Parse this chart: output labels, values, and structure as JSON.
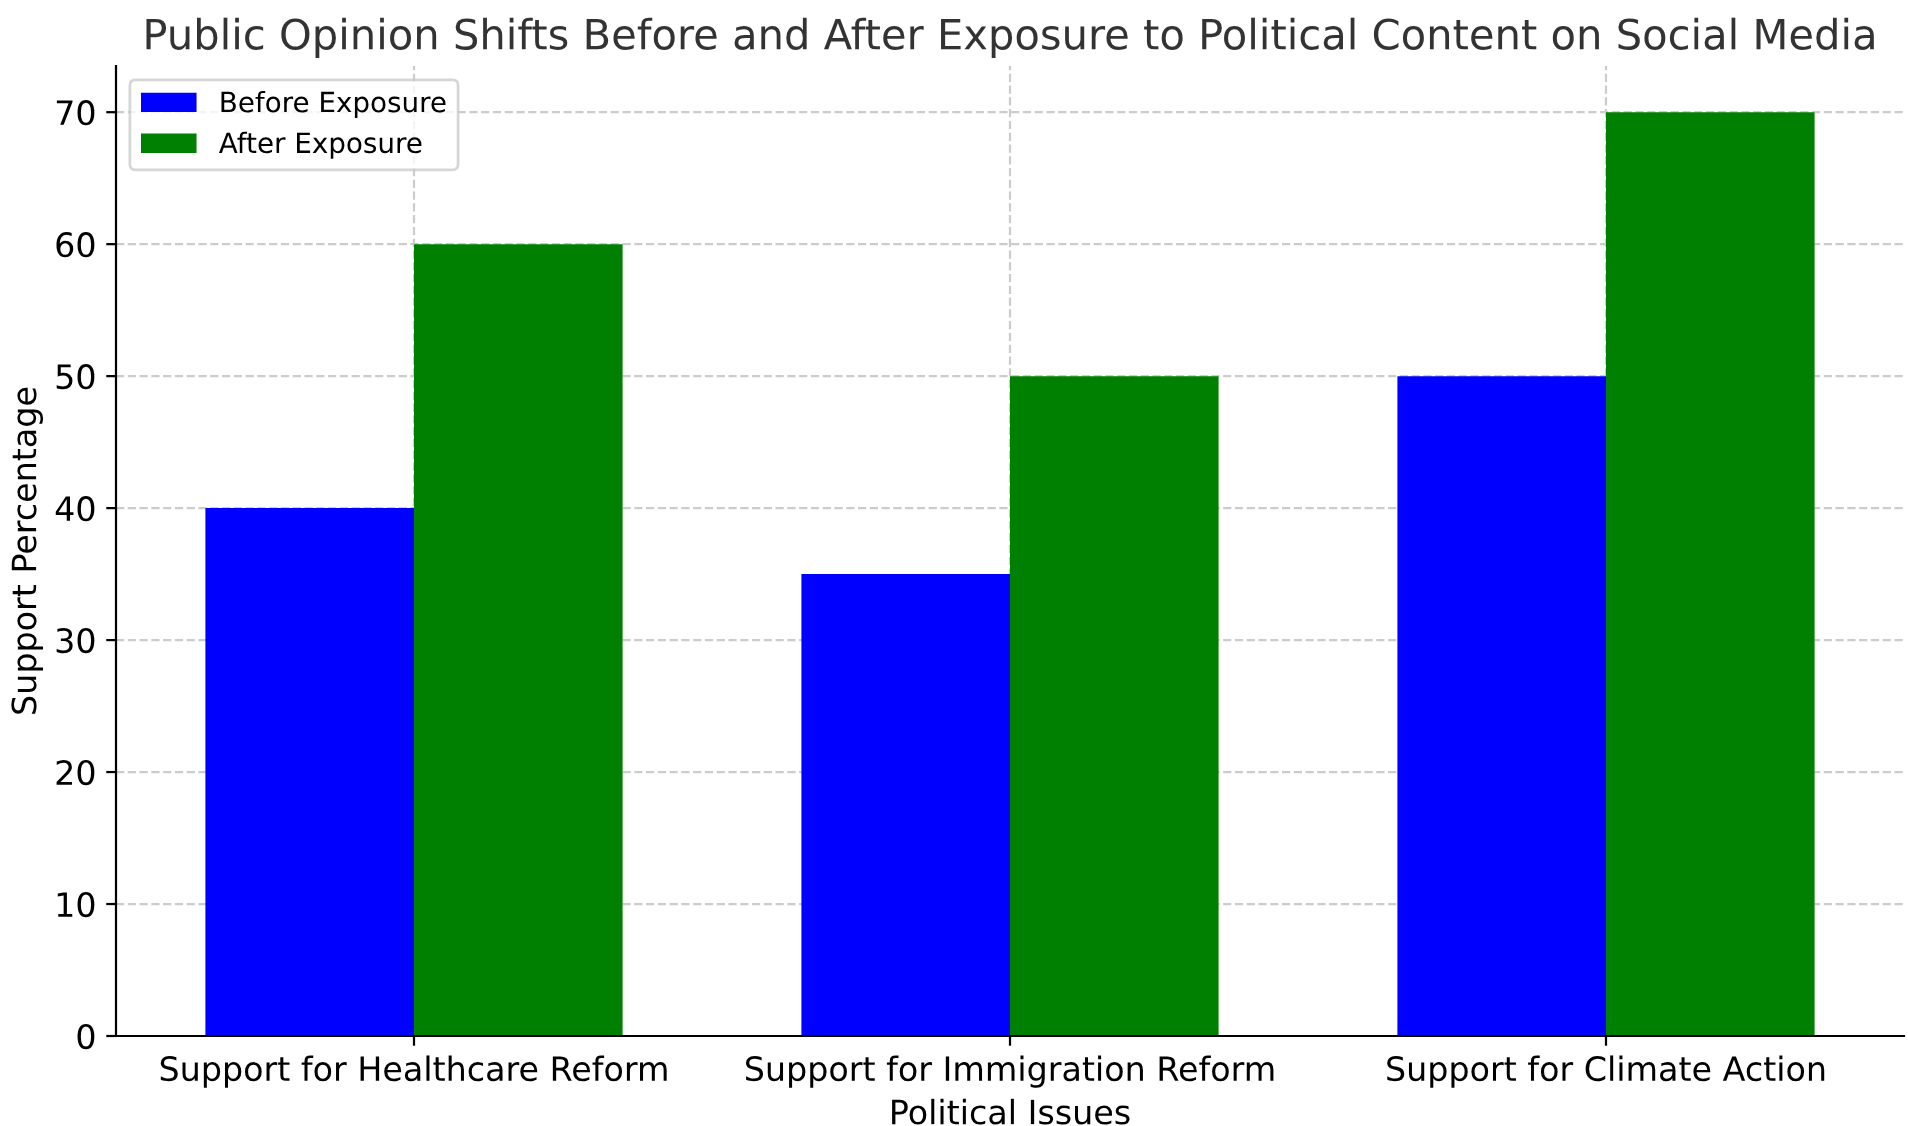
{
  "chart_data": {
    "type": "bar",
    "title": "Public Opinion Shifts Before and After Exposure to Political Content on Social Media",
    "xlabel": "Political Issues",
    "ylabel": "Support Percentage",
    "categories": [
      "Support for Healthcare Reform",
      "Support for Immigration Reform",
      "Support for Climate Action"
    ],
    "series": [
      {
        "name": "Before Exposure",
        "color": "#0000ff",
        "values": [
          40,
          35,
          50
        ]
      },
      {
        "name": "After Exposure",
        "color": "#008000",
        "values": [
          60,
          50,
          70
        ]
      }
    ],
    "ylim": [
      0,
      73.5
    ],
    "yticks": [
      0,
      10,
      20,
      30,
      40,
      50,
      60,
      70
    ],
    "grid": true,
    "legend": "top left"
  }
}
